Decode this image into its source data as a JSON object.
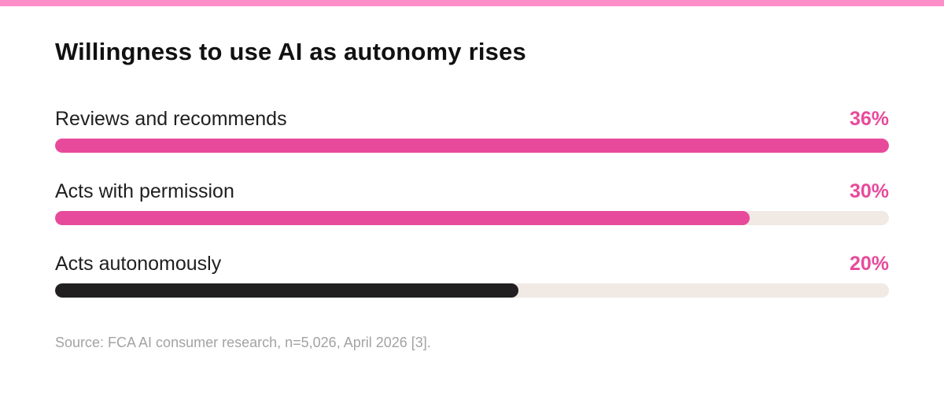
{
  "colors": {
    "accent": "#e84a9b",
    "dark": "#221f20",
    "track": "#f1e9e4",
    "top_bar": "#ff8fc8"
  },
  "source": "Source: FCA AI consumer research, n=5,026, April 2026 [3].",
  "chart_data": {
    "type": "bar",
    "orientation": "horizontal",
    "title": "Willingness to use AI as autonomy rises",
    "categories": [
      "Reviews and recommends",
      "Acts with permission",
      "Acts autonomously"
    ],
    "values": [
      36,
      30,
      20
    ],
    "value_labels": [
      "36%",
      "30%",
      "20%"
    ],
    "bar_colors": [
      "#e84a9b",
      "#e84a9b",
      "#221f20"
    ],
    "value_label_color": "#e84a9b",
    "xlim": [
      0,
      36
    ],
    "grid": false,
    "legend": "none"
  }
}
